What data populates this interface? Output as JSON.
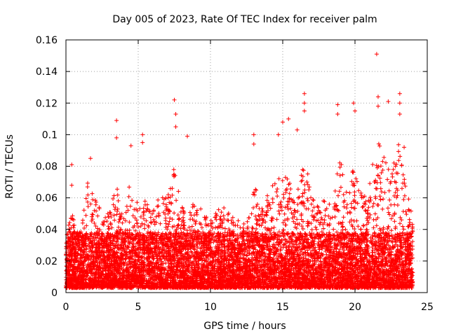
{
  "chart_data": {
    "type": "scatter",
    "title": "Day 005 of 2023, Rate Of TEC Index for receiver palm",
    "xlabel": "GPS time / hours",
    "ylabel": "ROTI / TECUs",
    "xlim": [
      0,
      25
    ],
    "ylim": [
      0,
      0.16
    ],
    "x_ticks": [
      0,
      5,
      10,
      15,
      20,
      25
    ],
    "x_tick_labels": [
      "0",
      "5",
      "10",
      "15",
      "20",
      "25"
    ],
    "y_ticks": [
      0,
      0.02,
      0.04,
      0.06,
      0.08,
      0.1,
      0.12,
      0.14,
      0.16
    ],
    "y_tick_labels": [
      "0",
      "0.02",
      "0.04",
      "0.06",
      "0.08",
      "0.1",
      "0.12",
      "0.14",
      "0.16"
    ],
    "grid": true,
    "marker": "+",
    "marker_color": "#ff0000",
    "series": [
      {
        "name": "ROTI",
        "x_range": [
          0,
          24
        ],
        "y_range": [
          0.003,
          0.151
        ],
        "sample_count": 9000,
        "notable_points": [
          {
            "x": 0.4,
            "y": 0.081
          },
          {
            "x": 0.4,
            "y": 0.068
          },
          {
            "x": 1.7,
            "y": 0.085
          },
          {
            "x": 3.5,
            "y": 0.109
          },
          {
            "x": 3.5,
            "y": 0.098
          },
          {
            "x": 4.5,
            "y": 0.093
          },
          {
            "x": 5.3,
            "y": 0.1
          },
          {
            "x": 5.3,
            "y": 0.095
          },
          {
            "x": 7.5,
            "y": 0.122
          },
          {
            "x": 7.6,
            "y": 0.113
          },
          {
            "x": 7.6,
            "y": 0.105
          },
          {
            "x": 8.4,
            "y": 0.099
          },
          {
            "x": 13.0,
            "y": 0.1
          },
          {
            "x": 13.0,
            "y": 0.094
          },
          {
            "x": 14.7,
            "y": 0.1
          },
          {
            "x": 15.0,
            "y": 0.108
          },
          {
            "x": 15.4,
            "y": 0.11
          },
          {
            "x": 16.0,
            "y": 0.103
          },
          {
            "x": 16.5,
            "y": 0.126
          },
          {
            "x": 16.5,
            "y": 0.12
          },
          {
            "x": 16.5,
            "y": 0.115
          },
          {
            "x": 18.8,
            "y": 0.119
          },
          {
            "x": 18.8,
            "y": 0.113
          },
          {
            "x": 19.9,
            "y": 0.12
          },
          {
            "x": 20.0,
            "y": 0.115
          },
          {
            "x": 21.5,
            "y": 0.151
          },
          {
            "x": 21.6,
            "y": 0.124
          },
          {
            "x": 21.6,
            "y": 0.118
          },
          {
            "x": 22.3,
            "y": 0.121
          },
          {
            "x": 23.1,
            "y": 0.126
          },
          {
            "x": 23.1,
            "y": 0.12
          },
          {
            "x": 23.1,
            "y": 0.113
          },
          {
            "x": 23.4,
            "y": 0.092
          }
        ]
      }
    ]
  }
}
